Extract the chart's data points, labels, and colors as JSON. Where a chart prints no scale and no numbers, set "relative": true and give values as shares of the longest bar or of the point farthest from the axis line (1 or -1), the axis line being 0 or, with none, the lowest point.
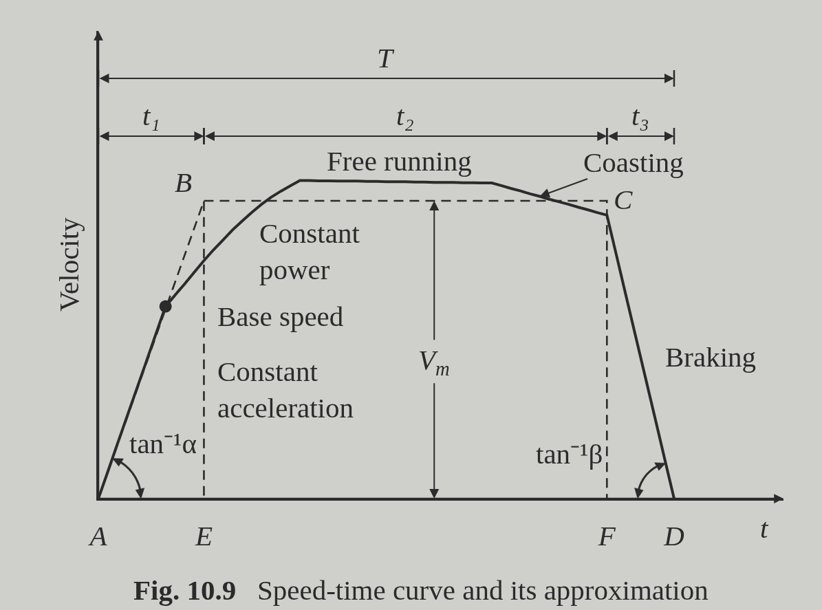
{
  "chart_data": {
    "type": "line",
    "relative": true,
    "title": "Fig. 10.9",
    "subtitle": "Speed-time curve and its approximation",
    "xlabel": "t",
    "ylabel": "Velocity",
    "tick_labels": "x",
    "categories": [
      "A",
      null,
      null,
      null,
      null,
      null,
      null,
      null,
      null,
      null,
      null,
      "E",
      null,
      null,
      null,
      null,
      null,
      null,
      null,
      null,
      null,
      null,
      null,
      null,
      null,
      null,
      null,
      null,
      null,
      null,
      null,
      null,
      null,
      null,
      null,
      null,
      null,
      null,
      null,
      null,
      null,
      null,
      null,
      null,
      null,
      null,
      null,
      null,
      null,
      null,
      null,
      null,
      null,
      "F",
      null,
      null,
      null,
      null,
      null,
      null,
      "D"
    ],
    "series": [
      {
        "color": "#2b2b2b",
        "line_style": "solid",
        "marker": "none",
        "values": [
          0,
          0.086,
          0.173,
          0.259,
          0.345,
          0.431,
          0.518,
          0.604,
          0.64,
          0.675,
          0.712,
          0.748,
          0.782,
          0.813,
          0.845,
          0.873,
          0.9,
          0.925,
          0.947,
          0.966,
          0.983,
          1,
          1,
          0.999,
          0.999,
          0.998,
          0.998,
          0.998,
          0.997,
          0.997,
          0.996,
          0.996,
          0.996,
          0.995,
          0.995,
          0.994,
          0.994,
          0.994,
          0.993,
          0.993,
          0.992,
          0.992,
          0.984,
          0.975,
          0.967,
          0.958,
          0.95,
          0.941,
          0.933,
          0.925,
          0.916,
          0.908,
          0.899,
          0.891,
          0.764,
          0.636,
          0.509,
          0.382,
          0.255,
          0.127,
          0
        ]
      },
      {
        "color": "#2b2b2b",
        "line_style": "dashed",
        "marker": "none",
        "x": [
          "A",
          "E",
          "E"
        ],
        "values": [
          0,
          0.936,
          0
        ]
      },
      {
        "color": "#2b2b2b",
        "line_style": "dashed",
        "marker": "none",
        "x": [
          "E",
          "F",
          "F"
        ],
        "values": [
          0.936,
          0.936,
          0
        ]
      },
      {
        "type": "scatter",
        "color": "#2b2b2b",
        "marker": "circle",
        "values": [
          null,
          null,
          null,
          null,
          null,
          null,
          null,
          0.604,
          null,
          null,
          null,
          null,
          null,
          null,
          null,
          null,
          null,
          null,
          null,
          null,
          null,
          null,
          null,
          null,
          null,
          null,
          null,
          null,
          null,
          null,
          null,
          null,
          null,
          null,
          null,
          null,
          null,
          null,
          null,
          null,
          null,
          null,
          null,
          null,
          null,
          null,
          null,
          null,
          null,
          null,
          null,
          null,
          null,
          null,
          null,
          null,
          null,
          null,
          null,
          null,
          null
        ]
      }
    ],
    "annotations": [
      "T",
      "t₁",
      "t₂",
      "t₃",
      "Free running",
      "Coasting",
      {
        "text": "B",
        "x": "E",
        "y": 0.936
      },
      {
        "text": "C",
        "x": "F",
        "y": 0.936
      },
      "Constant\npower",
      "Base speed",
      "Constant\nacceleration",
      "V$_{m}$",
      "Braking",
      {
        "text": "tan⁻¹α",
        "x": "A",
        "y": 0
      },
      {
        "text": "tan⁻¹β",
        "x": "D",
        "y": 0
      }
    ]
  }
}
